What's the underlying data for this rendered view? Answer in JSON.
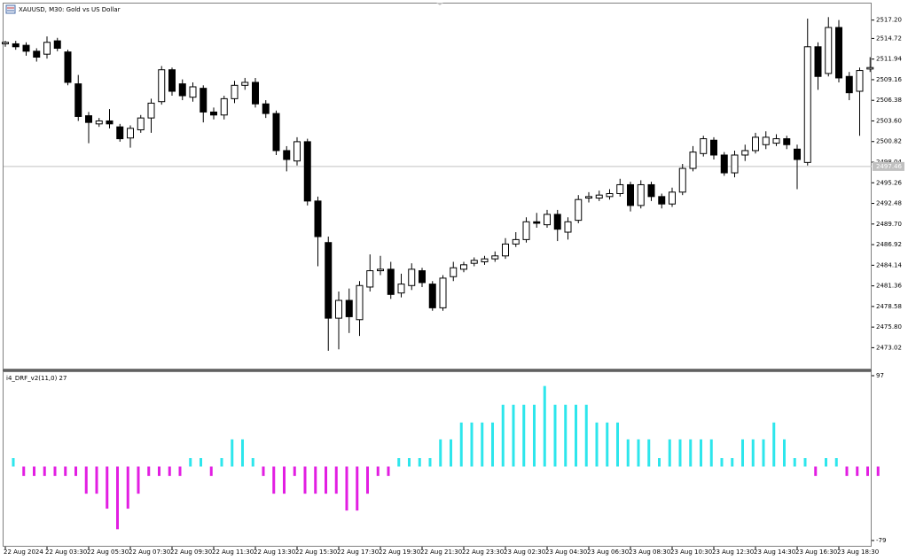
{
  "chart_data": [
    {
      "type": "candlestick",
      "title": "XAUUSD, M30:  Gold vs US Dollar",
      "categories": [
        "22 Aug 2024",
        null,
        null,
        null,
        "22 Aug 03:30",
        null,
        null,
        null,
        "22 Aug 05:30",
        null,
        null,
        null,
        "22 Aug 07:30",
        null,
        null,
        null,
        "22 Aug 09:30",
        null,
        null,
        null,
        "22 Aug 11:30",
        null,
        null,
        null,
        "22 Aug 13:30",
        null,
        null,
        null,
        "22 Aug 15:30",
        null,
        null,
        null,
        "22 Aug 17:30",
        null,
        null,
        null,
        "22 Aug 19:30",
        null,
        null,
        null,
        "22 Aug 21:30",
        null,
        null,
        null,
        "22 Aug 23:30",
        null,
        null,
        null,
        "23 Aug 02:30",
        null,
        null,
        null,
        "23 Aug 04:30",
        null,
        null,
        null,
        "23 Aug 06:30",
        null,
        null,
        null,
        "23 Aug 08:30",
        null,
        null,
        null,
        "23 Aug 10:30",
        null,
        null,
        null,
        "23 Aug 12:30",
        null,
        null,
        null,
        "23 Aug 14:30",
        null,
        null,
        null,
        "23 Aug 16:30",
        null,
        null,
        null,
        "23 Aug 18:30",
        null,
        null,
        null
      ],
      "open": [
        2514.0,
        2514.0,
        2513.8,
        2513.0,
        2512.6,
        2514.4,
        2512.9,
        2508.6,
        2504.3,
        2503.2,
        2503.6,
        2502.8,
        2501.3,
        2502.4,
        2504.0,
        2506.2,
        2510.5,
        2508.6,
        2506.8,
        2508.0,
        2504.8,
        2504.4,
        2506.6,
        2508.4,
        2508.8,
        2505.9,
        2504.6,
        2499.6,
        2498.2,
        2500.8,
        2492.8,
        2487.2,
        2477.0,
        2479.4,
        2476.8,
        2481.2,
        2483.4,
        2483.6,
        2480.4,
        2481.4,
        2483.4,
        2481.6,
        2478.4,
        2482.6,
        2483.6,
        2484.4,
        2484.6,
        2485.0,
        2485.4,
        2487.0,
        2487.6,
        2490.0,
        2489.6,
        2491.0,
        2488.6,
        2490.2,
        2493.2,
        2493.2,
        2493.4,
        2493.8,
        2495.0,
        2492.2,
        2495.0,
        2493.4,
        2492.4,
        2494.0,
        2497.2,
        2499.2,
        2501.0,
        2499.0,
        2496.6,
        2499.0,
        2499.6,
        2500.4,
        2500.6,
        2501.2,
        2499.8,
        2498.0,
        2513.6,
        2510.0,
        2516.2,
        2509.6,
        2507.6,
        2510.6
      ],
      "high": [
        2514.4,
        2514.4,
        2514.2,
        2513.4,
        2515.0,
        2514.8,
        2513.2,
        2509.8,
        2504.8,
        2504.0,
        2505.2,
        2503.2,
        2503.0,
        2504.4,
        2506.6,
        2511.0,
        2510.8,
        2509.2,
        2508.8,
        2508.4,
        2505.4,
        2507.0,
        2509.0,
        2509.4,
        2509.4,
        2506.4,
        2505.0,
        2500.2,
        2501.4,
        2501.2,
        2493.4,
        2488.0,
        2480.6,
        2481.0,
        2482.0,
        2485.6,
        2485.4,
        2484.6,
        2483.0,
        2484.4,
        2483.8,
        2482.0,
        2482.8,
        2484.6,
        2484.6,
        2485.2,
        2485.4,
        2486.0,
        2487.8,
        2488.6,
        2490.6,
        2491.2,
        2491.6,
        2491.6,
        2490.6,
        2493.6,
        2494.0,
        2494.2,
        2494.4,
        2495.8,
        2495.4,
        2495.6,
        2495.4,
        2493.8,
        2494.6,
        2497.8,
        2500.2,
        2501.6,
        2501.4,
        2499.4,
        2499.6,
        2500.4,
        2502.0,
        2502.2,
        2501.8,
        2501.6,
        2500.4,
        2517.4,
        2514.2,
        2517.6,
        2517.2,
        2510.2,
        2510.8,
        2512.2
      ],
      "low": [
        2513.6,
        2513.2,
        2512.4,
        2511.6,
        2512.0,
        2513.0,
        2508.4,
        2503.6,
        2500.6,
        2502.8,
        2502.6,
        2500.8,
        2500.0,
        2502.0,
        2502.0,
        2505.8,
        2507.0,
        2506.4,
        2506.2,
        2503.4,
        2503.8,
        2503.8,
        2506.0,
        2507.8,
        2505.4,
        2504.0,
        2499.0,
        2496.8,
        2497.6,
        2492.2,
        2484.0,
        2472.6,
        2472.8,
        2475.0,
        2474.6,
        2480.6,
        2482.8,
        2479.6,
        2479.8,
        2480.8,
        2481.2,
        2478.0,
        2478.0,
        2482.0,
        2483.2,
        2484.0,
        2484.2,
        2484.6,
        2485.0,
        2486.6,
        2487.2,
        2489.2,
        2489.2,
        2487.4,
        2487.6,
        2489.8,
        2492.6,
        2492.8,
        2493.0,
        2493.4,
        2491.4,
        2491.8,
        2492.8,
        2491.8,
        2492.0,
        2493.6,
        2496.8,
        2498.8,
        2498.4,
        2496.2,
        2496.0,
        2498.2,
        2499.2,
        2499.8,
        2500.2,
        2499.8,
        2494.4,
        2497.6,
        2507.8,
        2509.6,
        2508.8,
        2506.4,
        2501.6,
        2510.2
      ],
      "close": [
        2514.2,
        2513.6,
        2513.0,
        2512.2,
        2514.2,
        2513.4,
        2508.8,
        2504.2,
        2503.4,
        2503.6,
        2503.2,
        2501.2,
        2502.6,
        2504.0,
        2506.0,
        2510.5,
        2507.6,
        2507.0,
        2508.2,
        2504.8,
        2504.4,
        2506.6,
        2508.4,
        2508.8,
        2505.9,
        2504.6,
        2499.6,
        2498.4,
        2500.8,
        2492.8,
        2488.0,
        2477.0,
        2479.4,
        2477.2,
        2481.4,
        2483.4,
        2483.6,
        2480.2,
        2481.6,
        2483.6,
        2481.8,
        2478.4,
        2482.4,
        2483.8,
        2484.2,
        2484.8,
        2485.0,
        2485.4,
        2487.0,
        2487.6,
        2490.0,
        2489.8,
        2491.0,
        2489.0,
        2490.0,
        2493.0,
        2493.4,
        2493.6,
        2493.8,
        2495.0,
        2492.2,
        2495.0,
        2493.4,
        2492.4,
        2494.0,
        2497.2,
        2499.4,
        2501.2,
        2499.0,
        2496.6,
        2499.0,
        2499.6,
        2501.4,
        2501.4,
        2501.2,
        2500.4,
        2498.4,
        2513.6,
        2509.6,
        2516.2,
        2509.4,
        2507.4,
        2510.4,
        2510.8
      ],
      "up_color": "#ffffff",
      "down_color": "#000000",
      "outline_color": "#000000",
      "last_price": 2497.46,
      "ylim": [
        2470.44,
        2519.31
      ],
      "yticks": [
        {
          "value": 2517.2,
          "label": "2517.20"
        },
        2514.72,
        2511.94,
        2509.16,
        2506.38,
        {
          "value": 2503.6,
          "label": "2503.60"
        },
        2500.82,
        2498.04,
        2495.26,
        2492.48,
        {
          "value": 2489.7,
          "label": "2489.70"
        },
        2486.92,
        2484.14,
        2481.36,
        2478.58,
        {
          "value": 2475.8,
          "label": "2475.80"
        },
        2473.02
      ]
    },
    {
      "type": "bar",
      "title": "i4_DRF_v2(11,0) 27",
      "values": [
        9,
        -10,
        -10,
        -10,
        -10,
        -10,
        -10,
        -29,
        -29,
        -45,
        -67,
        -45,
        -29,
        -10,
        -10,
        -10,
        -10,
        9,
        9,
        -10,
        9,
        29,
        29,
        9,
        -10,
        -29,
        -29,
        -10,
        -29,
        -29,
        -29,
        -29,
        -47,
        -47,
        -29,
        -10,
        -10,
        9,
        9,
        9,
        9,
        29,
        29,
        47,
        47,
        47,
        47,
        66,
        66,
        66,
        66,
        86,
        66,
        66,
        66,
        66,
        47,
        47,
        47,
        29,
        29,
        29,
        9,
        29,
        29,
        29,
        29,
        29,
        9,
        9,
        29,
        29,
        29,
        47,
        29,
        9,
        9,
        -10,
        9,
        9,
        -10,
        -10,
        -10,
        -10
      ],
      "up_color": "#2de6ec",
      "down_color": "#e21ee2",
      "ylim": [
        -79,
        97
      ],
      "yticks": [
        97,
        -79
      ]
    }
  ]
}
